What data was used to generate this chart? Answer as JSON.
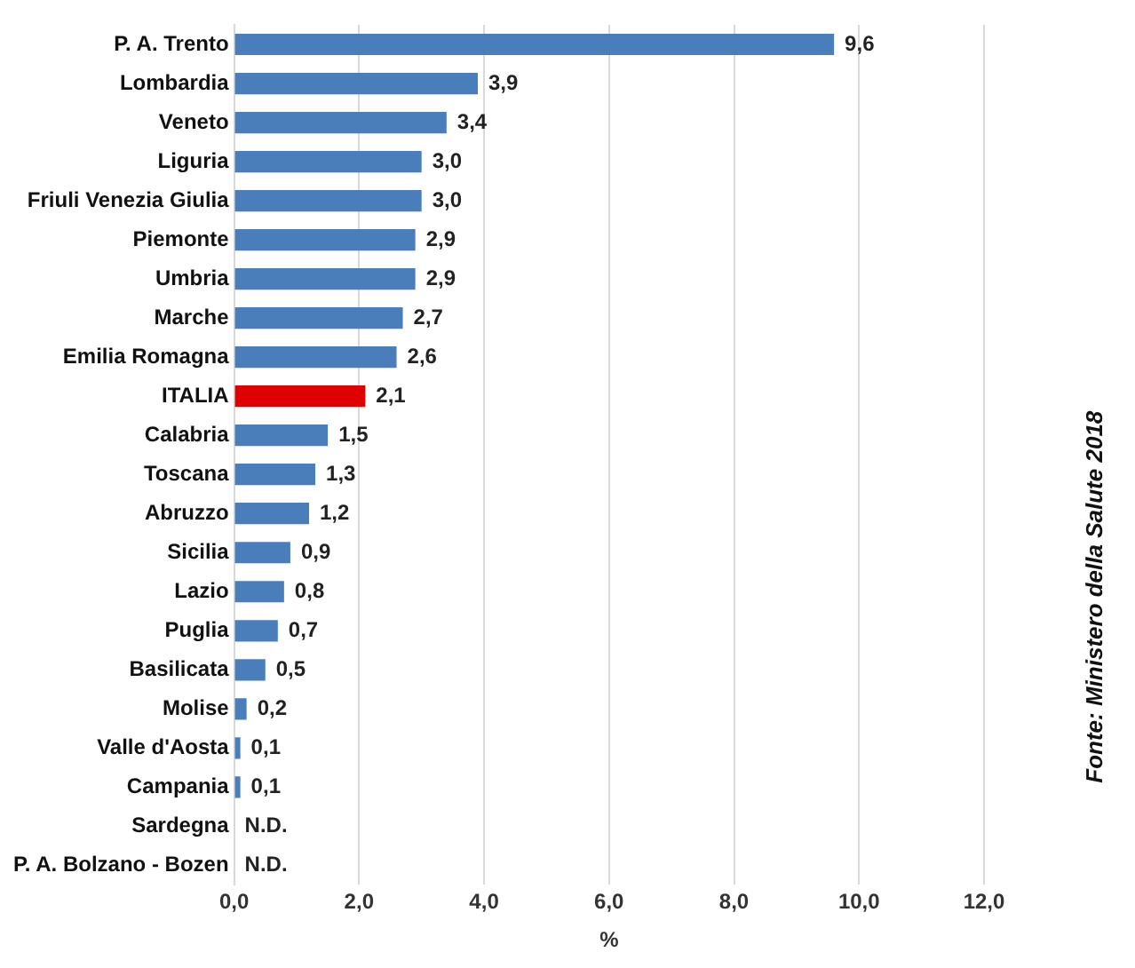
{
  "chart_data": {
    "type": "bar",
    "orientation": "horizontal",
    "xlabel": "%",
    "categories": [
      "P. A. Trento",
      "Lombardia",
      "Veneto",
      "Liguria",
      "Friuli Venezia Giulia",
      "Piemonte",
      "Umbria",
      "Marche",
      "Emilia Romagna",
      "ITALIA",
      "Calabria",
      "Toscana",
      "Abruzzo",
      "Sicilia",
      "Lazio",
      "Puglia",
      "Basilicata",
      "Molise",
      "Valle d'Aosta",
      "Campania",
      "Sardegna",
      "P. A. Bolzano - Bozen"
    ],
    "values": [
      9.6,
      3.9,
      3.4,
      3.0,
      3.0,
      2.9,
      2.9,
      2.7,
      2.6,
      2.1,
      1.5,
      1.3,
      1.2,
      0.9,
      0.8,
      0.7,
      0.5,
      0.2,
      0.1,
      0.1,
      null,
      null
    ],
    "colors": [
      "#4a7ebb",
      "#4a7ebb",
      "#4a7ebb",
      "#4a7ebb",
      "#4a7ebb",
      "#4a7ebb",
      "#4a7ebb",
      "#4a7ebb",
      "#4a7ebb",
      "#e00000",
      "#4a7ebb",
      "#4a7ebb",
      "#4a7ebb",
      "#4a7ebb",
      "#4a7ebb",
      "#4a7ebb",
      "#4a7ebb",
      "#4a7ebb",
      "#4a7ebb",
      "#4a7ebb",
      "#4a7ebb",
      "#4a7ebb"
    ],
    "value_labels": [
      "9,6",
      "3,9",
      "3,4",
      "3,0",
      "3,0",
      "2,9",
      "2,9",
      "2,7",
      "2,6",
      "2,1",
      "1,5",
      "1,3",
      "1,2",
      "0,9",
      "0,8",
      "0,7",
      "0,5",
      "0,2",
      "0,1",
      "0,1",
      "N.D.",
      "N.D."
    ],
    "xlim": [
      0,
      12
    ],
    "xticks": [
      {
        "value": 0,
        "label": "0,0"
      },
      {
        "value": 2,
        "label": "2,0"
      },
      {
        "value": 4,
        "label": "4,0"
      },
      {
        "value": 6,
        "label": "6,0"
      },
      {
        "value": 8,
        "label": "8,0"
      },
      {
        "value": 10,
        "label": "10,0"
      },
      {
        "value": 12,
        "label": "12,0"
      }
    ],
    "grid": "x",
    "legend": false,
    "annotations": [
      "Fonte: Ministero della Salute 2018"
    ]
  }
}
